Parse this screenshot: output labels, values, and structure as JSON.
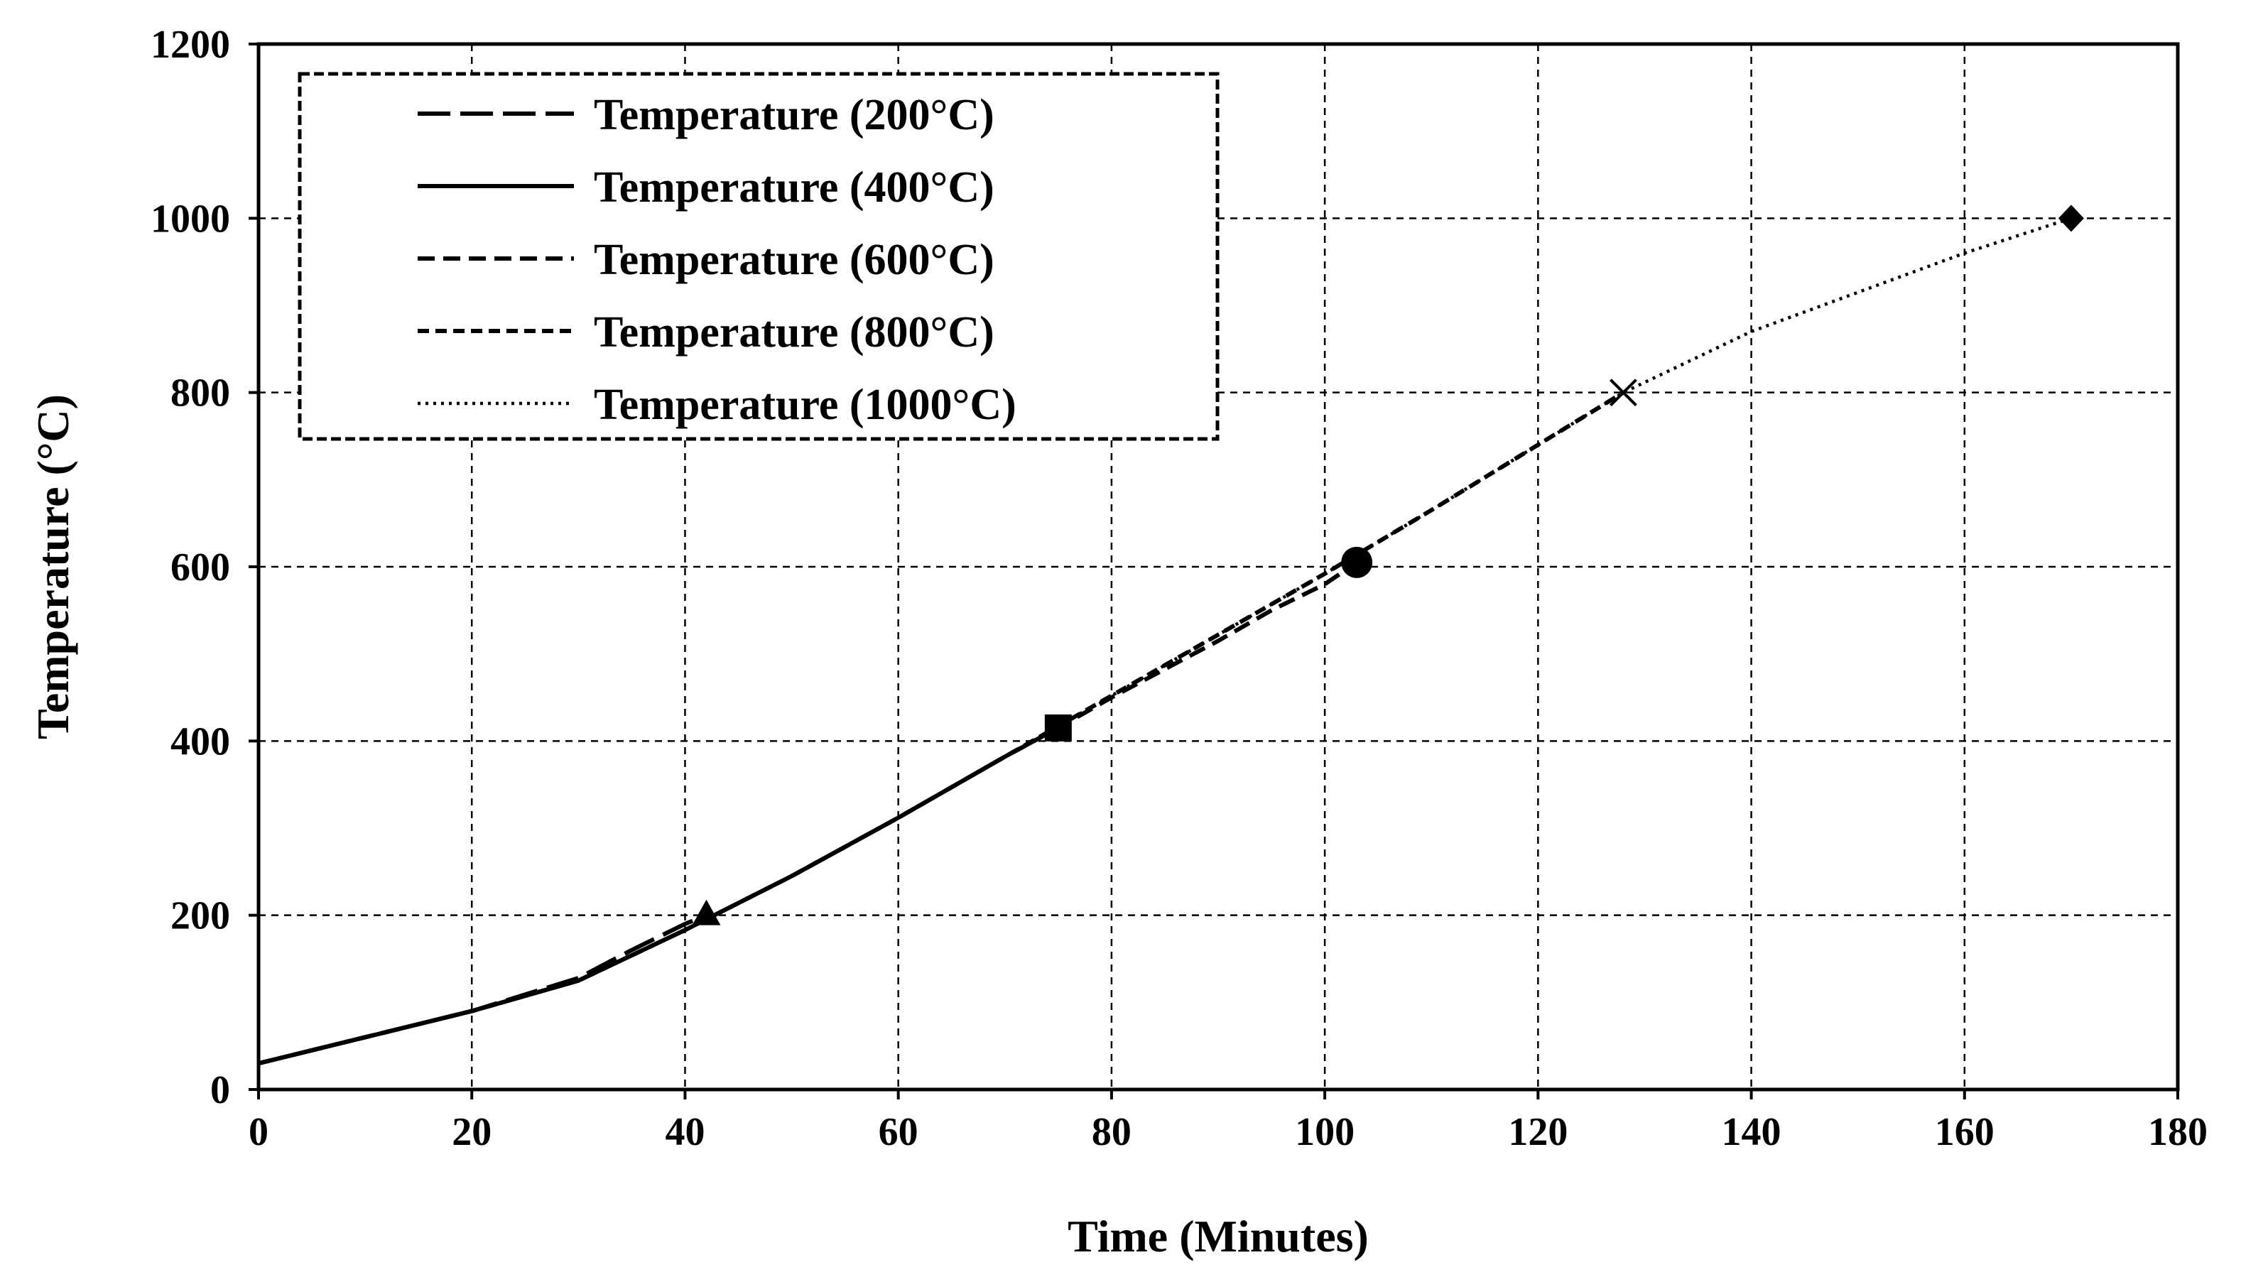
{
  "chart_data": {
    "type": "line",
    "title": "",
    "xlabel": "Time (Minutes)",
    "ylabel": "Temperature (°C)",
    "xlim": [
      0,
      180
    ],
    "ylim": [
      0,
      1200
    ],
    "xticks": [
      0,
      20,
      40,
      60,
      80,
      100,
      120,
      140,
      160,
      180
    ],
    "yticks": [
      0,
      200,
      400,
      600,
      800,
      1000,
      1200
    ],
    "grid": true,
    "legend_position": "top-left",
    "series": [
      {
        "name": "Temperature (200°C)",
        "dash": "long-dash",
        "marker": "triangle",
        "end": [
          42,
          200
        ],
        "x": [
          0,
          10,
          20,
          30,
          35,
          40,
          42
        ],
        "y": [
          30,
          60,
          90,
          128,
          160,
          190,
          200
        ]
      },
      {
        "name": "Temperature (400°C)",
        "dash": "solid",
        "marker": "square",
        "end": [
          75,
          415
        ],
        "x": [
          0,
          10,
          20,
          30,
          40,
          50,
          60,
          70,
          75
        ],
        "y": [
          30,
          60,
          90,
          125,
          183,
          245,
          312,
          382,
          415
        ]
      },
      {
        "name": "Temperature (600°C)",
        "dash": "dash",
        "marker": "circle",
        "end": [
          103,
          605
        ],
        "x": [
          0,
          20,
          30,
          40,
          50,
          60,
          70,
          75,
          80,
          90,
          95,
          100,
          103
        ],
        "y": [
          30,
          90,
          125,
          183,
          245,
          312,
          382,
          415,
          450,
          515,
          550,
          580,
          605
        ]
      },
      {
        "name": "Temperature (800°C)",
        "dash": "short-dash",
        "marker": "x",
        "end": [
          128,
          800
        ],
        "x": [
          0,
          20,
          30,
          40,
          50,
          60,
          70,
          80,
          90,
          100,
          110,
          120,
          128
        ],
        "y": [
          30,
          90,
          125,
          183,
          245,
          312,
          382,
          452,
          522,
          592,
          665,
          740,
          800
        ]
      },
      {
        "name": "Temperature (1000°C)",
        "dash": "dotted",
        "marker": "diamond",
        "end": [
          170,
          1000
        ],
        "x": [
          0,
          20,
          30,
          40,
          50,
          60,
          70,
          80,
          90,
          100,
          110,
          120,
          128,
          140,
          150,
          160,
          170
        ],
        "y": [
          30,
          90,
          125,
          183,
          245,
          312,
          382,
          452,
          522,
          592,
          665,
          740,
          800,
          870,
          915,
          960,
          1000
        ]
      }
    ]
  }
}
